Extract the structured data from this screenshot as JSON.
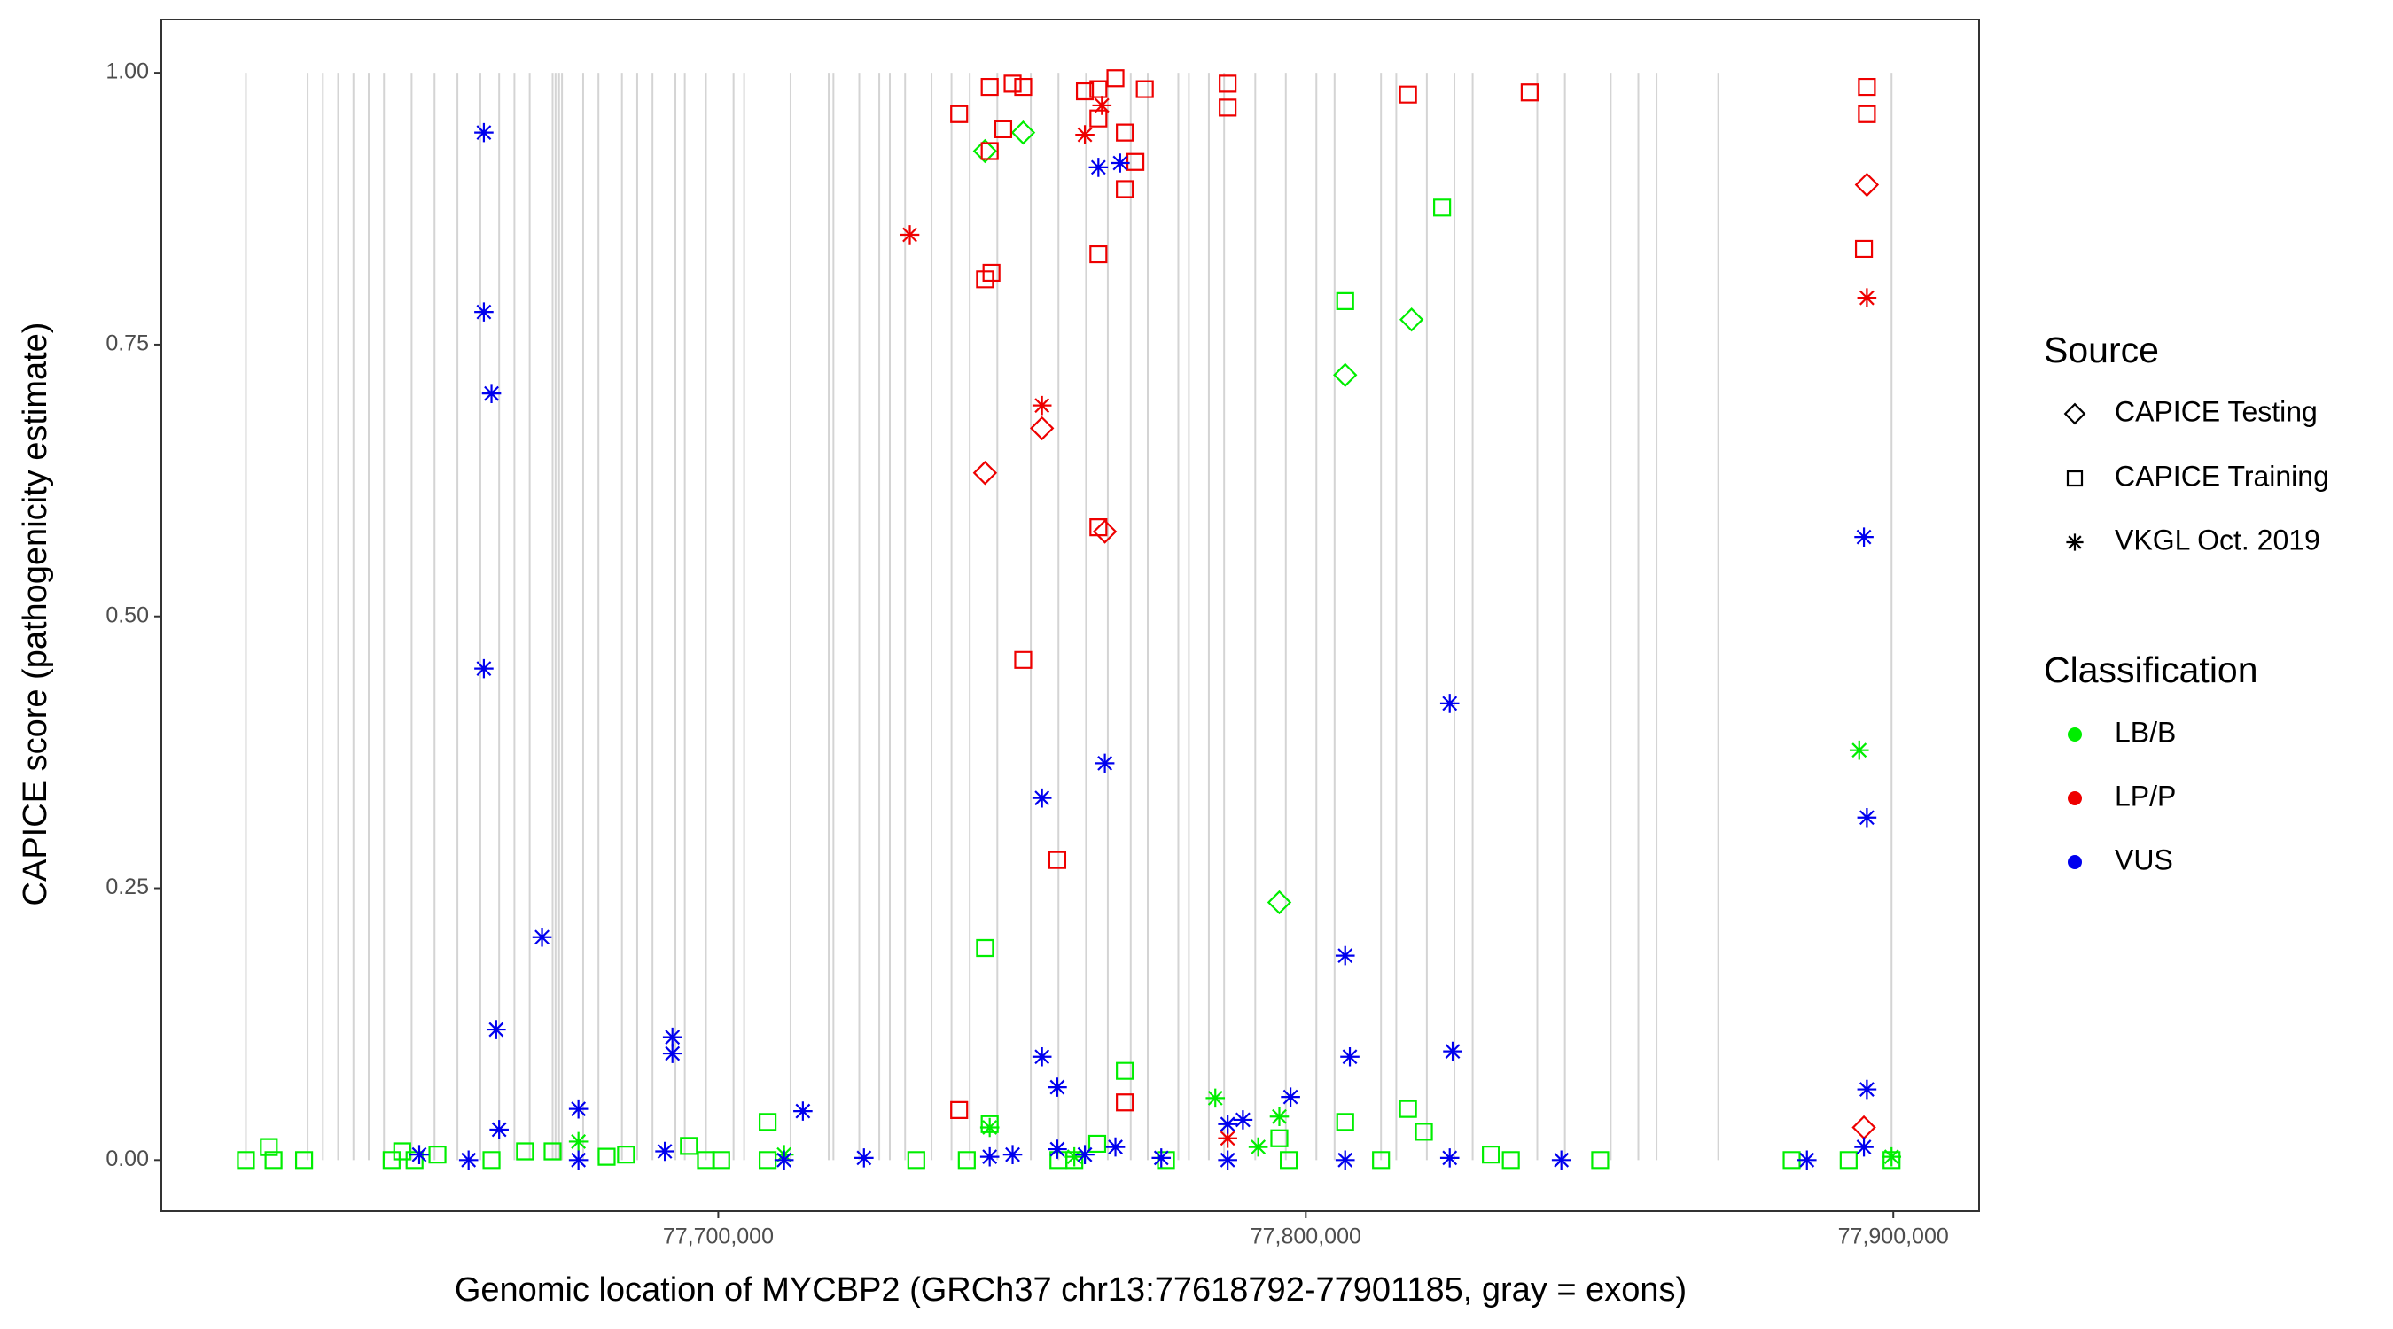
{
  "chart_data": {
    "type": "scatter",
    "x_label": "Genomic location of MYCBP2 (GRCh37 chr13:77618792-77901185, gray = exons)",
    "y_label": "CAPICE score (pathogenicity estimate)",
    "xlim": [
      77605200,
      77914600
    ],
    "ylim": [
      -0.047,
      1.049
    ],
    "xticks": [
      {
        "value": 77700000,
        "label": "77,700,000"
      },
      {
        "value": 77800000,
        "label": "77,800,000"
      },
      {
        "value": 77900000,
        "label": "77,900,000"
      }
    ],
    "yticks": [
      {
        "value": 0,
        "label": "0.00"
      },
      {
        "value": 0.25,
        "label": "0.25"
      },
      {
        "value": 0.5,
        "label": "0.50"
      },
      {
        "value": 0.75,
        "label": "0.75"
      },
      {
        "value": 1,
        "label": "1.00"
      }
    ],
    "exon_color": "#d4d4d4",
    "exons": [
      77619600,
      77630100,
      77632700,
      77635300,
      77637900,
      77640500,
      77643100,
      77647800,
      77651700,
      77655600,
      77659500,
      77662700,
      77665300,
      77667900,
      77671800,
      77672300,
      77672900,
      77673400,
      77677000,
      77679600,
      77683600,
      77686200,
      77688800,
      77692700,
      77694300,
      77697900,
      77702600,
      77704400,
      77712300,
      77718800,
      77719600,
      77724000,
      77727400,
      77729200,
      77731800,
      77736300,
      77739700,
      77742800,
      77747500,
      77753200,
      77757900,
      77762600,
      77766300,
      77770200,
      77773100,
      77778300,
      77780100,
      77783500,
      77786100,
      77791400,
      77796600,
      77801800,
      77804900,
      77812800,
      77815400,
      77820600,
      77825300,
      77828400,
      77839400,
      77844100,
      77851900,
      77856600,
      77859700,
      77870200,
      77899700
    ],
    "shape_legend_title": "Source",
    "color_legend_title": "Classification",
    "sources": [
      {
        "name": "CAPICE Testing",
        "shape": "diamond"
      },
      {
        "name": "CAPICE Training",
        "shape": "square"
      },
      {
        "name": "VKGL Oct. 2019",
        "shape": "asterisk"
      }
    ],
    "series": [
      {
        "name": "LB/B",
        "color": "#00ee00",
        "x": [
          77619600,
          77623500,
          77624300,
          77629500,
          77644400,
          77646200,
          77648300,
          77652200,
          77661400,
          77667100,
          77671800,
          77681000,
          77684300,
          77695000,
          77697900,
          77700500,
          77708400,
          77708400,
          77733700,
          77742300,
          77745400,
          77746200,
          77757900,
          77760600,
          77764500,
          77769200,
          77776200,
          77795500,
          77797100,
          77806700,
          77806700,
          77812800,
          77817400,
          77820100,
          77823200,
          77831500,
          77834900,
          77850100,
          77882700,
          77892400,
          77899700,
          77745400,
          77751900,
          77795500,
          77806700,
          77818000,
          77676200,
          77746200,
          77784600,
          77795500,
          77791900,
          77894200,
          77899700,
          77711200,
          77760600
        ],
        "values": [
          0,
          0.012,
          0,
          0,
          0,
          0.008,
          0,
          0.005,
          0,
          0.008,
          0.008,
          0.003,
          0.005,
          0.013,
          0,
          0,
          0.035,
          0,
          0,
          0,
          0.195,
          0.033,
          0,
          0,
          0.015,
          0.082,
          0,
          0.02,
          0,
          0.79,
          0.035,
          0,
          0.047,
          0.026,
          0.876,
          0.005,
          0,
          0,
          0,
          0,
          0,
          0.928,
          0.945,
          0.237,
          0.722,
          0.773,
          0.017,
          0.03,
          0.057,
          0.04,
          0.012,
          0.377,
          0.003,
          0.005,
          0.003
        ],
        "source": [
          1,
          1,
          1,
          1,
          1,
          1,
          1,
          1,
          1,
          1,
          1,
          1,
          1,
          1,
          1,
          1,
          1,
          1,
          1,
          1,
          1,
          1,
          1,
          1,
          1,
          1,
          1,
          1,
          1,
          1,
          1,
          1,
          1,
          1,
          1,
          1,
          1,
          1,
          1,
          1,
          1,
          0,
          0,
          0,
          0,
          0,
          2,
          2,
          2,
          2,
          2,
          2,
          2,
          2,
          2
        ]
      },
      {
        "name": "LP/P",
        "color": "#ee0000",
        "x": [
          77741000,
          77746200,
          77750100,
          77751900,
          77762400,
          77764700,
          77764700,
          77767600,
          77769200,
          77772600,
          77771000,
          77769200,
          77786700,
          77786700,
          77817400,
          77838100,
          77895500,
          77895500,
          77895000,
          77745400,
          77746500,
          77764700,
          77751900,
          77757700,
          77764700,
          77741000,
          77769200,
          77748500,
          77746200,
          77745400,
          77755100,
          77765800,
          77895500,
          77895000,
          77732600,
          77755100,
          77762400,
          77765300,
          77895500,
          77786700
        ],
        "values": [
          0.962,
          0.987,
          0.99,
          0.987,
          0.983,
          0.985,
          0.958,
          0.995,
          0.945,
          0.985,
          0.918,
          0.893,
          0.99,
          0.968,
          0.98,
          0.982,
          0.987,
          0.962,
          0.838,
          0.81,
          0.816,
          0.833,
          0.46,
          0.276,
          0.582,
          0.046,
          0.053,
          0.948,
          0.928,
          0.632,
          0.673,
          0.578,
          0.897,
          0.03,
          0.851,
          0.694,
          0.943,
          0.97,
          0.793,
          0.02
        ],
        "source": [
          1,
          1,
          1,
          1,
          1,
          1,
          1,
          1,
          1,
          1,
          1,
          1,
          1,
          1,
          1,
          1,
          1,
          1,
          1,
          1,
          1,
          1,
          1,
          1,
          1,
          1,
          1,
          1,
          1,
          0,
          0,
          0,
          0,
          0,
          2,
          2,
          2,
          2,
          2,
          2
        ]
      },
      {
        "name": "VUS",
        "color": "#0000ee",
        "x": [
          77660100,
          77660100,
          77661400,
          77660100,
          77670000,
          77662200,
          77662700,
          77676200,
          77692200,
          77692200,
          77690900,
          77649100,
          77657500,
          77676200,
          77711200,
          77714400,
          77724800,
          77746200,
          77750100,
          77755100,
          77755100,
          77757700,
          77757700,
          77762400,
          77764700,
          77768400,
          77765800,
          77767600,
          77775400,
          77786700,
          77789300,
          77797400,
          77786700,
          77806700,
          77807500,
          77806700,
          77824500,
          77825000,
          77824500,
          77843500,
          77885300,
          77895000,
          77895500,
          77895500,
          77895000
        ],
        "values": [
          0.945,
          0.78,
          0.705,
          0.452,
          0.205,
          0.12,
          0.028,
          0.047,
          0.113,
          0.098,
          0.008,
          0.005,
          0,
          0,
          0,
          0.045,
          0.002,
          0.003,
          0.005,
          0.333,
          0.095,
          0.067,
          0.01,
          0.005,
          0.913,
          0.917,
          0.365,
          0.012,
          0.002,
          0.033,
          0.037,
          0.058,
          0,
          0.188,
          0.095,
          0,
          0.42,
          0.1,
          0.002,
          0,
          0,
          0.573,
          0.315,
          0.065,
          0.012
        ],
        "source": [
          2,
          2,
          2,
          2,
          2,
          2,
          2,
          2,
          2,
          2,
          2,
          2,
          2,
          2,
          2,
          2,
          2,
          2,
          2,
          2,
          2,
          2,
          2,
          2,
          2,
          2,
          2,
          2,
          2,
          2,
          2,
          2,
          2,
          2,
          2,
          2,
          2,
          2,
          2,
          2,
          2,
          2,
          2,
          2,
          2
        ]
      }
    ]
  }
}
